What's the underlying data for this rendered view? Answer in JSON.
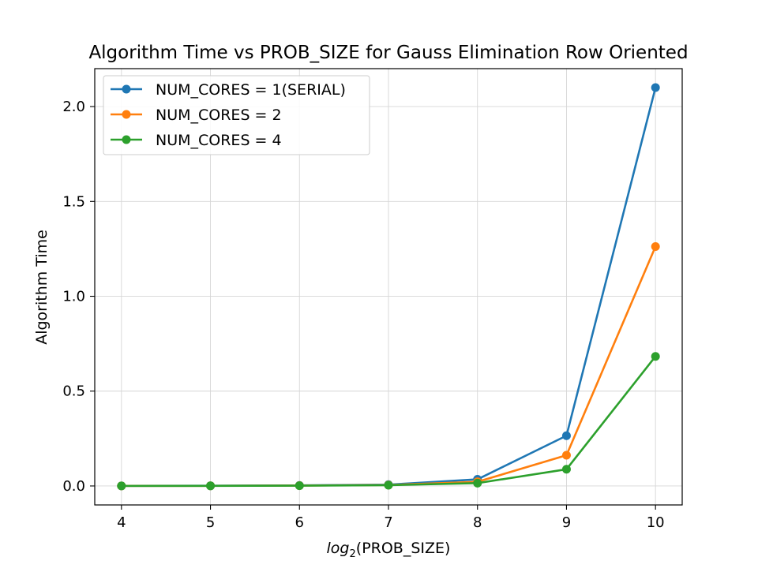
{
  "chart_data": {
    "type": "line",
    "title": "Algorithm Time vs PROB_SIZE for Gauss Elimination Row Oriented",
    "xlabel": "log2(PROB_SIZE)",
    "xlabel_main": "log",
    "xlabel_sub": "2",
    "xlabel_rest": "(PROB_SIZE)",
    "ylabel": "Algorithm Time",
    "x": [
      4,
      5,
      6,
      7,
      8,
      9,
      10
    ],
    "xlim": [
      3.7,
      10.3
    ],
    "ylim": [
      -0.1,
      2.2
    ],
    "xticks": [
      "4",
      "5",
      "6",
      "7",
      "8",
      "9",
      "10"
    ],
    "yticks": [
      "0.0",
      "0.5",
      "1.0",
      "1.5",
      "2.0"
    ],
    "ytick_values": [
      0.0,
      0.5,
      1.0,
      1.5,
      2.0
    ],
    "grid": true,
    "legend_position": "top-left",
    "series": [
      {
        "name": "NUM_CORES = 1(SERIAL)",
        "color": "#1f77b4",
        "values": [
          0.0005,
          0.001,
          0.003,
          0.007,
          0.035,
          0.265,
          2.1
        ]
      },
      {
        "name": "NUM_CORES = 2",
        "color": "#ff7f0e",
        "values": [
          0.0004,
          0.0008,
          0.002,
          0.005,
          0.022,
          0.162,
          1.262
        ]
      },
      {
        "name": "NUM_CORES = 4",
        "color": "#2ca02c",
        "values": [
          0.0003,
          0.0006,
          0.0015,
          0.004,
          0.015,
          0.088,
          0.683
        ]
      }
    ]
  }
}
